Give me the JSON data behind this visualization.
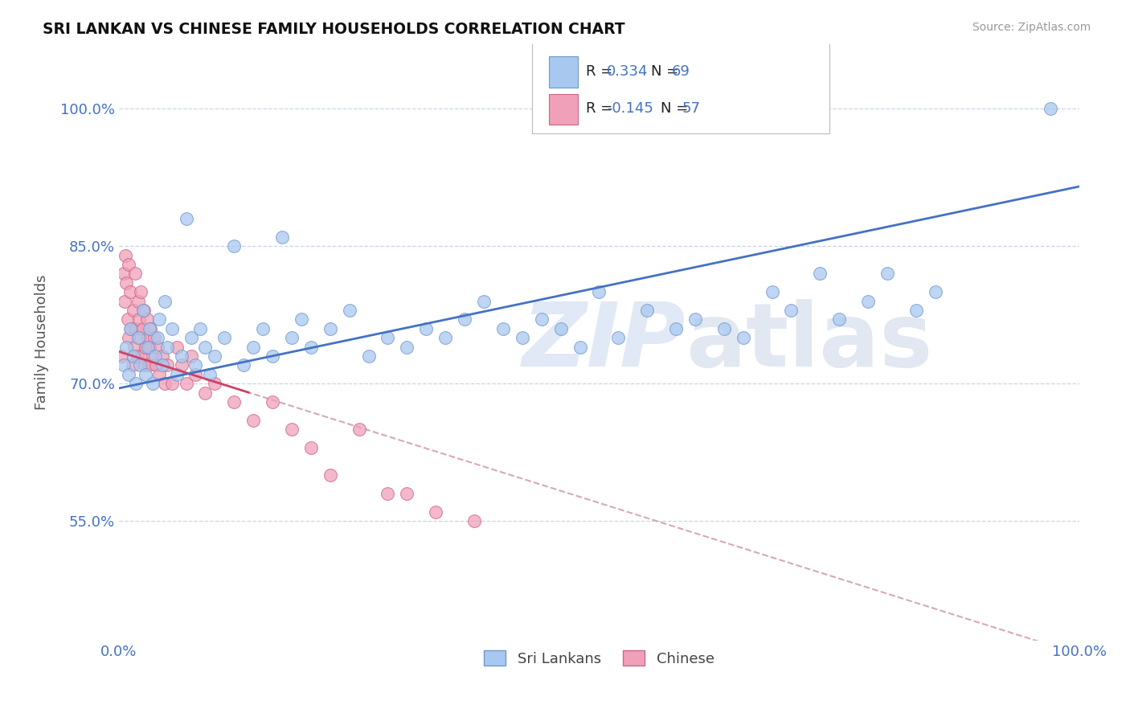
{
  "title": "SRI LANKAN VS CHINESE FAMILY HOUSEHOLDS CORRELATION CHART",
  "source": "Source: ZipAtlas.com",
  "ylabel": "Family Households",
  "y_ticks": [
    "55.0%",
    "70.0%",
    "85.0%",
    "100.0%"
  ],
  "y_tick_vals": [
    0.55,
    0.7,
    0.85,
    1.0
  ],
  "x_range": [
    0.0,
    1.0
  ],
  "y_range": [
    0.42,
    1.07
  ],
  "sri_lanka_color": "#a8c8f0",
  "sri_lanka_edge": "#7099cc",
  "chinese_color": "#f0a0b8",
  "chinese_edge": "#cc6688",
  "trend_sri_lanka": "#4472c4",
  "trend_chinese_solid": "#cc4466",
  "trend_dashed": "#d0a0b0",
  "R_sri": 0.334,
  "N_sri": 69,
  "R_chi": -0.145,
  "N_chi": 57,
  "legend_label_sri": "Sri Lankans",
  "legend_label_chi": "Chinese",
  "sri_lankans_x": [
    0.005,
    0.008,
    0.01,
    0.012,
    0.015,
    0.018,
    0.02,
    0.022,
    0.025,
    0.028,
    0.03,
    0.032,
    0.035,
    0.038,
    0.04,
    0.042,
    0.045,
    0.048,
    0.05,
    0.055,
    0.06,
    0.065,
    0.07,
    0.075,
    0.08,
    0.085,
    0.09,
    0.095,
    0.1,
    0.11,
    0.12,
    0.13,
    0.14,
    0.15,
    0.16,
    0.17,
    0.18,
    0.19,
    0.2,
    0.22,
    0.24,
    0.26,
    0.28,
    0.3,
    0.32,
    0.34,
    0.36,
    0.38,
    0.4,
    0.42,
    0.44,
    0.46,
    0.48,
    0.5,
    0.52,
    0.55,
    0.58,
    0.6,
    0.63,
    0.65,
    0.68,
    0.7,
    0.73,
    0.75,
    0.78,
    0.8,
    0.83,
    0.85,
    0.97
  ],
  "sri_lankans_y": [
    0.72,
    0.74,
    0.71,
    0.76,
    0.73,
    0.7,
    0.75,
    0.72,
    0.78,
    0.71,
    0.74,
    0.76,
    0.7,
    0.73,
    0.75,
    0.77,
    0.72,
    0.79,
    0.74,
    0.76,
    0.71,
    0.73,
    0.88,
    0.75,
    0.72,
    0.76,
    0.74,
    0.71,
    0.73,
    0.75,
    0.85,
    0.72,
    0.74,
    0.76,
    0.73,
    0.86,
    0.75,
    0.77,
    0.74,
    0.76,
    0.78,
    0.73,
    0.75,
    0.74,
    0.76,
    0.75,
    0.77,
    0.79,
    0.76,
    0.75,
    0.77,
    0.76,
    0.74,
    0.8,
    0.75,
    0.78,
    0.76,
    0.77,
    0.76,
    0.75,
    0.8,
    0.78,
    0.82,
    0.77,
    0.79,
    0.82,
    0.78,
    0.8,
    1.0
  ],
  "chinese_x": [
    0.003,
    0.005,
    0.006,
    0.007,
    0.008,
    0.009,
    0.01,
    0.01,
    0.012,
    0.013,
    0.014,
    0.015,
    0.016,
    0.017,
    0.018,
    0.019,
    0.02,
    0.021,
    0.022,
    0.023,
    0.024,
    0.025,
    0.026,
    0.027,
    0.028,
    0.029,
    0.03,
    0.031,
    0.032,
    0.033,
    0.035,
    0.037,
    0.039,
    0.04,
    0.042,
    0.045,
    0.048,
    0.05,
    0.055,
    0.06,
    0.065,
    0.07,
    0.075,
    0.08,
    0.09,
    0.1,
    0.12,
    0.14,
    0.16,
    0.18,
    0.2,
    0.22,
    0.25,
    0.28,
    0.3,
    0.33,
    0.37
  ],
  "chinese_y": [
    0.73,
    0.82,
    0.79,
    0.84,
    0.81,
    0.77,
    0.83,
    0.75,
    0.8,
    0.76,
    0.72,
    0.78,
    0.74,
    0.82,
    0.76,
    0.73,
    0.79,
    0.77,
    0.75,
    0.8,
    0.73,
    0.76,
    0.78,
    0.72,
    0.74,
    0.77,
    0.75,
    0.72,
    0.74,
    0.76,
    0.73,
    0.75,
    0.72,
    0.74,
    0.71,
    0.73,
    0.7,
    0.72,
    0.7,
    0.74,
    0.72,
    0.7,
    0.73,
    0.71,
    0.69,
    0.7,
    0.68,
    0.66,
    0.68,
    0.65,
    0.63,
    0.6,
    0.65,
    0.58,
    0.58,
    0.56,
    0.55
  ]
}
